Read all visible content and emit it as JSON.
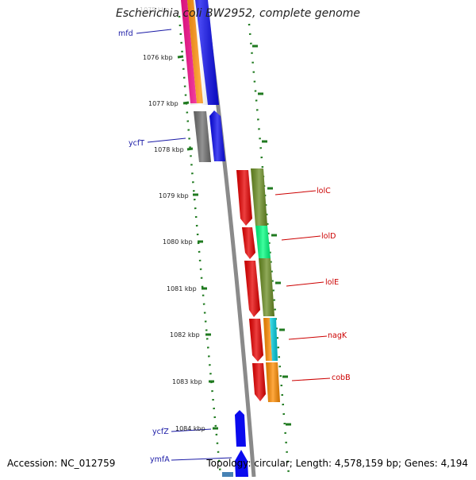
{
  "title": "Escherichia coli BW2952, complete genome",
  "accession": "Accession: NC_012759",
  "topology": "Topology: circular; Length: 4,578,159 bp; Genes: 4,194",
  "faded_top_label": "1075 kbp",
  "ruler_labels": [
    "1076 kbp",
    "1077 kbp",
    "1078 kbp",
    "1079 kbp",
    "1080 kbp",
    "1081 kbp",
    "1082 kbp",
    "1083 kbp",
    "1084 kbp"
  ],
  "left_genes": [
    "mfd",
    "ycfT",
    "ycfZ",
    "ymfA"
  ],
  "right_genes": [
    "lolC",
    "lolD",
    "lolE",
    "nagK",
    "cobB"
  ],
  "colors": {
    "left_label": "#1a1aa6",
    "right_label": "#cc0000",
    "tick": "#1f7a1f",
    "backbone": "#8a8a8a",
    "blue": "#0a0aee",
    "red": "#e80000",
    "olive": "#6b8e23",
    "spring": "#00ff7f",
    "orange": "#ff8c00",
    "cyan": "#00cfe0",
    "magenta": "#ff1493",
    "gray": "#707070"
  }
}
